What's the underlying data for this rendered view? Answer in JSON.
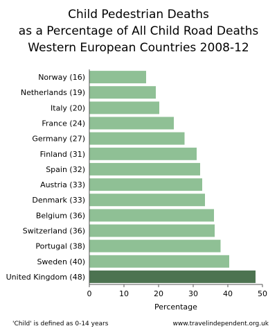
{
  "chart_data": {
    "type": "bar",
    "orientation": "horizontal",
    "title_lines": [
      "Child Pedestrian Deaths",
      "as a Percentage of All Child Road Deaths",
      "Western European Countries 2008-12"
    ],
    "categories": [
      "Norway (16)",
      "Netherlands (19)",
      "Italy (20)",
      "France (24)",
      "Germany (27)",
      "Finland (31)",
      "Spain (32)",
      "Austria (33)",
      "Denmark (33)",
      "Belgium (36)",
      "Switzerland (36)",
      "Portugal (38)",
      "Sweden (40)",
      "United Kingdom (48)"
    ],
    "values": [
      16.4,
      19.2,
      20.2,
      24.4,
      27.5,
      31.0,
      32.0,
      32.6,
      33.4,
      36.0,
      36.2,
      37.9,
      40.4,
      48.0
    ],
    "highlight_index": 13,
    "xlabel": "Percentage",
    "ylabel": "",
    "xlim": [
      0,
      50
    ],
    "xticks": [
      0,
      10,
      20,
      30,
      40,
      50
    ],
    "grid": false,
    "legend": "none",
    "colors": {
      "bar": "#8fc095",
      "highlight": "#4c7350",
      "axis": "#555555"
    }
  },
  "footer": {
    "note": "'Child' is defined as 0-14 years",
    "source": "www.travelindependent.org.uk"
  }
}
